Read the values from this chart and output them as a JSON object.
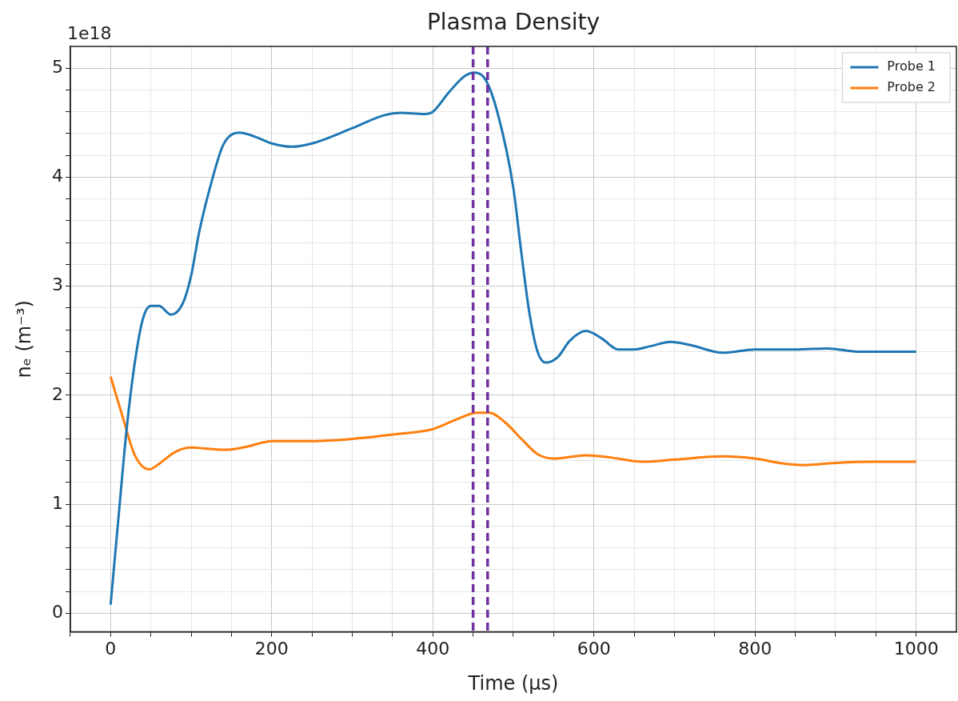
{
  "chart_data": {
    "type": "line",
    "title": "Plasma Density",
    "xlabel": "Time (μs)",
    "ylabel": "nₑ (m⁻³)",
    "annotations": [
      "1e18"
    ],
    "series": [
      {
        "name": "Probe 1",
        "color": "#1f77b4",
        "x": [
          0,
          10,
          20,
          30,
          40,
          50,
          60,
          75,
          90,
          100,
          110,
          125,
          140,
          160,
          180,
          200,
          225,
          250,
          300,
          340,
          360,
          390,
          400,
          420,
          440,
          452,
          465,
          480,
          500,
          510,
          520,
          530,
          540,
          555,
          570,
          590,
          610,
          630,
          650,
          670,
          695,
          720,
          760,
          800,
          850,
          890,
          930,
          1000
        ],
        "values": [
          0.08,
          0.9,
          1.7,
          2.3,
          2.7,
          2.82,
          2.82,
          2.74,
          2.85,
          3.1,
          3.5,
          3.95,
          4.3,
          4.41,
          4.37,
          4.31,
          4.28,
          4.31,
          4.45,
          4.57,
          4.59,
          4.58,
          4.6,
          4.78,
          4.93,
          4.96,
          4.9,
          4.6,
          3.9,
          3.3,
          2.75,
          2.4,
          2.3,
          2.35,
          2.5,
          2.59,
          2.52,
          2.42,
          2.42,
          2.45,
          2.49,
          2.46,
          2.39,
          2.42,
          2.42,
          2.43,
          2.4,
          2.4
        ]
      },
      {
        "name": "Probe 2",
        "color": "#ff7f0e",
        "x": [
          0,
          15,
          30,
          48,
          60,
          80,
          100,
          120,
          145,
          170,
          200,
          250,
          300,
          350,
          400,
          430,
          455,
          470,
          490,
          510,
          530,
          550,
          590,
          620,
          660,
          700,
          760,
          800,
          830,
          860,
          900,
          950,
          1000
        ],
        "values": [
          2.17,
          1.8,
          1.45,
          1.32,
          1.37,
          1.48,
          1.52,
          1.51,
          1.5,
          1.53,
          1.58,
          1.58,
          1.6,
          1.64,
          1.69,
          1.78,
          1.84,
          1.84,
          1.75,
          1.6,
          1.46,
          1.42,
          1.45,
          1.43,
          1.39,
          1.41,
          1.44,
          1.42,
          1.38,
          1.36,
          1.38,
          1.39,
          1.39
        ]
      }
    ],
    "xlim": [
      -50,
      1050
    ],
    "xticks": [
      {
        "value": -50,
        "label": null
      },
      0,
      {
        "value": 50,
        "label": null
      },
      {
        "value": 100,
        "label": null
      },
      {
        "value": 150,
        "label": null
      },
      200,
      {
        "value": 250,
        "label": null
      },
      {
        "value": 300,
        "label": null
      },
      {
        "value": 350,
        "label": null
      },
      400,
      {
        "value": 450,
        "label": null
      },
      {
        "value": 500,
        "label": null
      },
      {
        "value": 550,
        "label": null
      },
      600,
      {
        "value": 650,
        "label": null
      },
      {
        "value": 700,
        "label": null
      },
      {
        "value": 750,
        "label": null
      },
      800,
      {
        "value": 850,
        "label": null
      },
      {
        "value": 900,
        "label": null
      },
      {
        "value": 950,
        "label": null
      },
      1000
    ],
    "ylim": [
      -0.17,
      5.2
    ],
    "yticks": [
      0,
      {
        "value": 0.2,
        "label": null
      },
      {
        "value": 0.4,
        "label": null
      },
      {
        "value": 0.6,
        "label": null
      },
      {
        "value": 0.8,
        "label": null
      },
      1,
      {
        "value": 1.2,
        "label": null
      },
      {
        "value": 1.4,
        "label": null
      },
      {
        "value": 1.6,
        "label": null
      },
      {
        "value": 1.8,
        "label": null
      },
      2,
      {
        "value": 2.2,
        "label": null
      },
      {
        "value": 2.4,
        "label": null
      },
      {
        "value": 2.6,
        "label": null
      },
      {
        "value": 2.8,
        "label": null
      },
      3,
      {
        "value": 3.2,
        "label": null
      },
      {
        "value": 3.4,
        "label": null
      },
      {
        "value": 3.6,
        "label": null
      },
      {
        "value": 3.8,
        "label": null
      },
      4,
      {
        "value": 4.2,
        "label": null
      },
      {
        "value": 4.4,
        "label": null
      },
      {
        "value": 4.6,
        "label": null
      },
      {
        "value": 4.8,
        "label": null
      },
      5
    ],
    "ref_lines": [
      {
        "axis": "x",
        "value": 450,
        "color": "#7030a0",
        "line_style": "dashed"
      },
      {
        "axis": "x",
        "value": 468,
        "color": "#7030a0",
        "line_style": "dashed"
      }
    ],
    "grid": true,
    "legend": "top right",
    "marker": "none",
    "line_style": "solid"
  }
}
